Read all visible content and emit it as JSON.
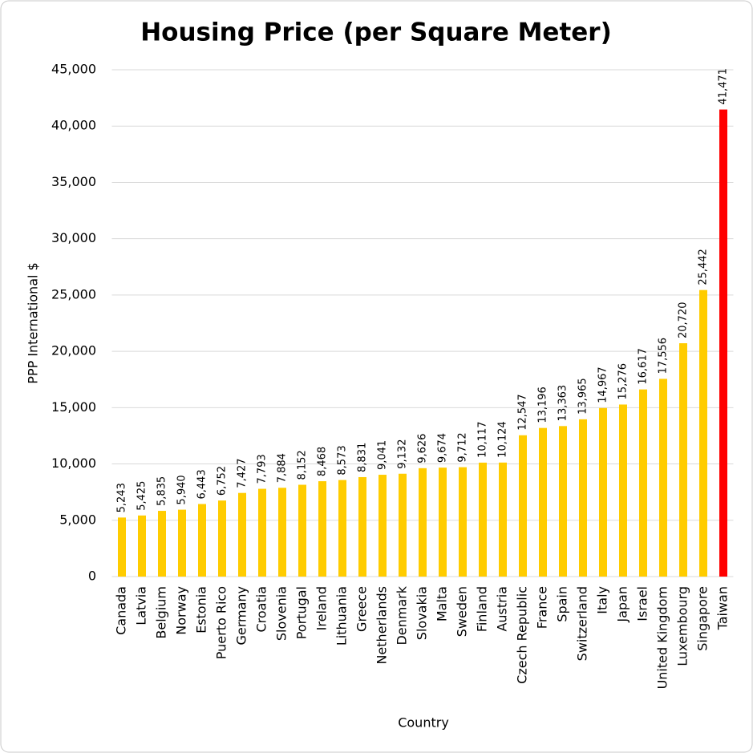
{
  "chart_data": {
    "type": "bar",
    "title": "Housing Price (per Square Meter)",
    "y_label": "PPP International $",
    "x_label": "Country",
    "categories": [
      "Canada",
      "Latvia",
      "Belgium",
      "Norway",
      "Estonia",
      "Puerto Rico",
      "Germany",
      "Croatia",
      "Slovenia",
      "Portugal",
      "Ireland",
      "Lithuania",
      "Greece",
      "Netherlands",
      "Denmark",
      "Slovakia",
      "Malta",
      "Sweden",
      "Finland",
      "Austria",
      "Czech Republic",
      "France",
      "Spain",
      "Switzerland",
      "Italy",
      "Japan",
      "Israel",
      "United Kingdom",
      "Luxembourg",
      "Singapore",
      "Taiwan"
    ],
    "values": [
      5243,
      5425,
      5835,
      5940,
      6443,
      6752,
      7427,
      7793,
      7884,
      8152,
      8468,
      8573,
      8831,
      9041,
      9132,
      9626,
      9674,
      9712,
      10117,
      10124,
      12547,
      13196,
      13363,
      13965,
      14967,
      15276,
      16617,
      17556,
      20720,
      25442,
      41471
    ],
    "value_labels": [
      "5,243",
      "5,425",
      "5,835",
      "5,940",
      "6,443",
      "6,752",
      "7,427",
      "7,793",
      "7,884",
      "8,152",
      "8,468",
      "8,573",
      "8,831",
      "9,041",
      "9,132",
      "9,626",
      "9,674",
      "9,712",
      "10,117",
      "10,124",
      "12,547",
      "13,196",
      "13,363",
      "13,965",
      "14,967",
      "15,276",
      "16,617",
      "17,556",
      "20,720",
      "25,442",
      "41,471"
    ],
    "colors": [
      "#ffcc00",
      "#ffcc00",
      "#ffcc00",
      "#ffcc00",
      "#ffcc00",
      "#ffcc00",
      "#ffcc00",
      "#ffcc00",
      "#ffcc00",
      "#ffcc00",
      "#ffcc00",
      "#ffcc00",
      "#ffcc00",
      "#ffcc00",
      "#ffcc00",
      "#ffcc00",
      "#ffcc00",
      "#ffcc00",
      "#ffcc00",
      "#ffcc00",
      "#ffcc00",
      "#ffcc00",
      "#ffcc00",
      "#ffcc00",
      "#ffcc00",
      "#ffcc00",
      "#ffcc00",
      "#ffcc00",
      "#ffcc00",
      "#ffcc00",
      "#ff0000"
    ],
    "ylim": [
      0,
      45000
    ],
    "yticks": [
      0,
      {
        "value": 5000,
        "label": "5,000"
      },
      {
        "value": 10000,
        "label": "10,000"
      },
      {
        "value": 15000,
        "label": "15,000"
      },
      {
        "value": 20000,
        "label": "20,000"
      },
      {
        "value": 25000,
        "label": "25,000"
      },
      {
        "value": 30000,
        "label": "30,000"
      },
      {
        "value": 35000,
        "label": "35,000"
      },
      {
        "value": 40000,
        "label": "40,000"
      },
      {
        "value": 45000,
        "label": "45,000"
      }
    ],
    "grid": true
  }
}
